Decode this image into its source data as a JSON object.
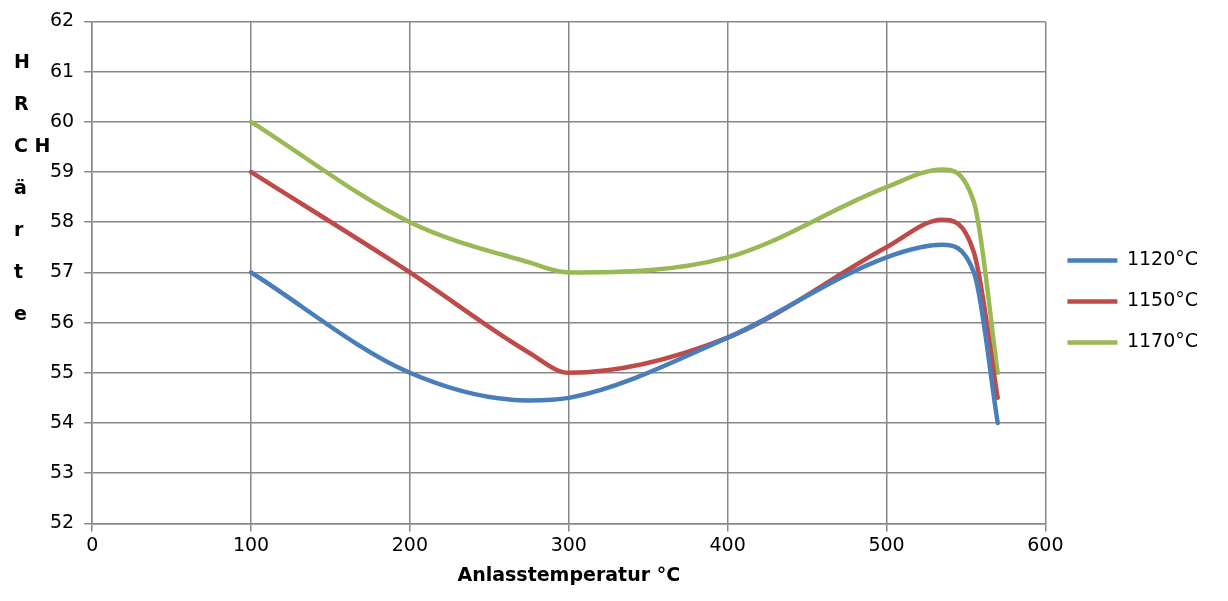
{
  "chart_data": {
    "type": "line",
    "xlabel": "Anlasstemperatur °C",
    "ylabel": "HRC Härte",
    "x": [
      100,
      200,
      275,
      300,
      400,
      500,
      535,
      555,
      570
    ],
    "series": [
      {
        "name": "1120°C",
        "color": "#4a7ebb",
        "values": [
          57,
          55,
          54.45,
          54.5,
          55.7,
          57.3,
          57.55,
          57,
          54
        ]
      },
      {
        "name": "1150°C",
        "color": "#be4b48",
        "values": [
          59,
          57,
          55.4,
          55,
          55.7,
          57.5,
          58.05,
          57.4,
          54.5
        ]
      },
      {
        "name": "1170°C",
        "color": "#98b954",
        "values": [
          60,
          58,
          57.2,
          57,
          57.3,
          58.7,
          59.05,
          58.4,
          55
        ]
      }
    ],
    "xlim": [
      0,
      600
    ],
    "xticks": [
      0,
      100,
      200,
      300,
      400,
      500,
      600
    ],
    "ylim": [
      52,
      62
    ],
    "yticks": [
      52,
      53,
      54,
      55,
      56,
      57,
      58,
      59,
      60,
      61,
      62
    ],
    "grid": true,
    "legend": "right",
    "marker": "none",
    "line_style": "solid"
  }
}
